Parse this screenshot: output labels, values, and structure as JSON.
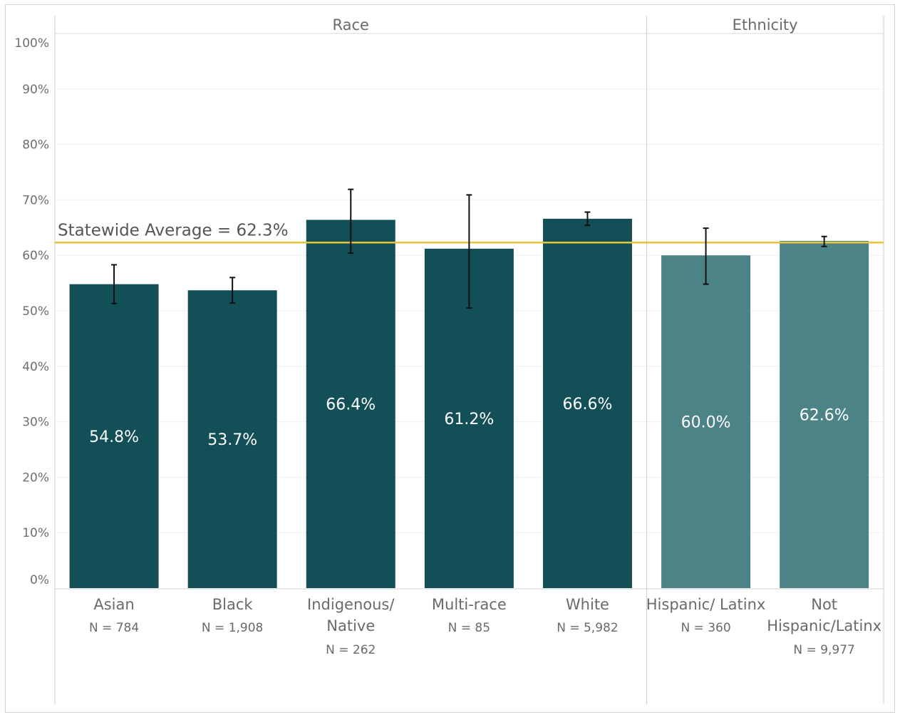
{
  "chart_data": {
    "type": "bar",
    "groups": [
      {
        "label": "Race",
        "categories": [
          "Asian",
          "Black",
          "Indigenous/ Native",
          "Multi-race",
          "White"
        ]
      },
      {
        "label": "Ethnicity",
        "categories": [
          "Hispanic/ Latinx",
          "Not Hispanic/Latinx"
        ]
      }
    ],
    "categories": [
      {
        "label_lines": [
          "Asian"
        ],
        "n": "N = 784",
        "value": 54.8,
        "value_label": "54.8%",
        "err_low": 51.3,
        "err_high": 58.3,
        "group": "Race"
      },
      {
        "label_lines": [
          "Black"
        ],
        "n": "N = 1,908",
        "value": 53.7,
        "value_label": "53.7%",
        "err_low": 51.4,
        "err_high": 56.0,
        "group": "Race"
      },
      {
        "label_lines": [
          "Indigenous/",
          "Native"
        ],
        "n": "N = 262",
        "value": 66.4,
        "value_label": "66.4%",
        "err_low": 60.4,
        "err_high": 71.9,
        "group": "Race"
      },
      {
        "label_lines": [
          "Multi-race"
        ],
        "n": "N = 85",
        "value": 61.2,
        "value_label": "61.2%",
        "err_low": 50.5,
        "err_high": 70.9,
        "group": "Race"
      },
      {
        "label_lines": [
          "White"
        ],
        "n": "N = 5,982",
        "value": 66.6,
        "value_label": "66.6%",
        "err_low": 65.4,
        "err_high": 67.8,
        "group": "Race"
      },
      {
        "label_lines": [
          "Hispanic/ Latinx"
        ],
        "n": "N = 360",
        "value": 60.0,
        "value_label": "60.0%",
        "err_low": 54.8,
        "err_high": 64.9,
        "group": "Ethnicity"
      },
      {
        "label_lines": [
          "Not",
          "Hispanic/Latinx"
        ],
        "n": "N = 9,977",
        "value": 62.6,
        "value_label": "62.6%",
        "err_low": 61.6,
        "err_high": 63.4,
        "group": "Ethnicity"
      }
    ],
    "ylim": [
      0,
      100
    ],
    "yticks": [
      0,
      10,
      20,
      30,
      40,
      50,
      60,
      70,
      80,
      90,
      100
    ],
    "ytick_labels": [
      "0%",
      "10%",
      "20%",
      "30%",
      "40%",
      "50%",
      "60%",
      "70%",
      "80%",
      "90%",
      "100%"
    ],
    "reference_line": {
      "value": 62.3,
      "label": "Statewide Average = 62.3%",
      "color": "#e8c43a"
    },
    "colors": {
      "Race": "#134f57",
      "Ethnicity": "#4c8387"
    },
    "grid": true
  }
}
